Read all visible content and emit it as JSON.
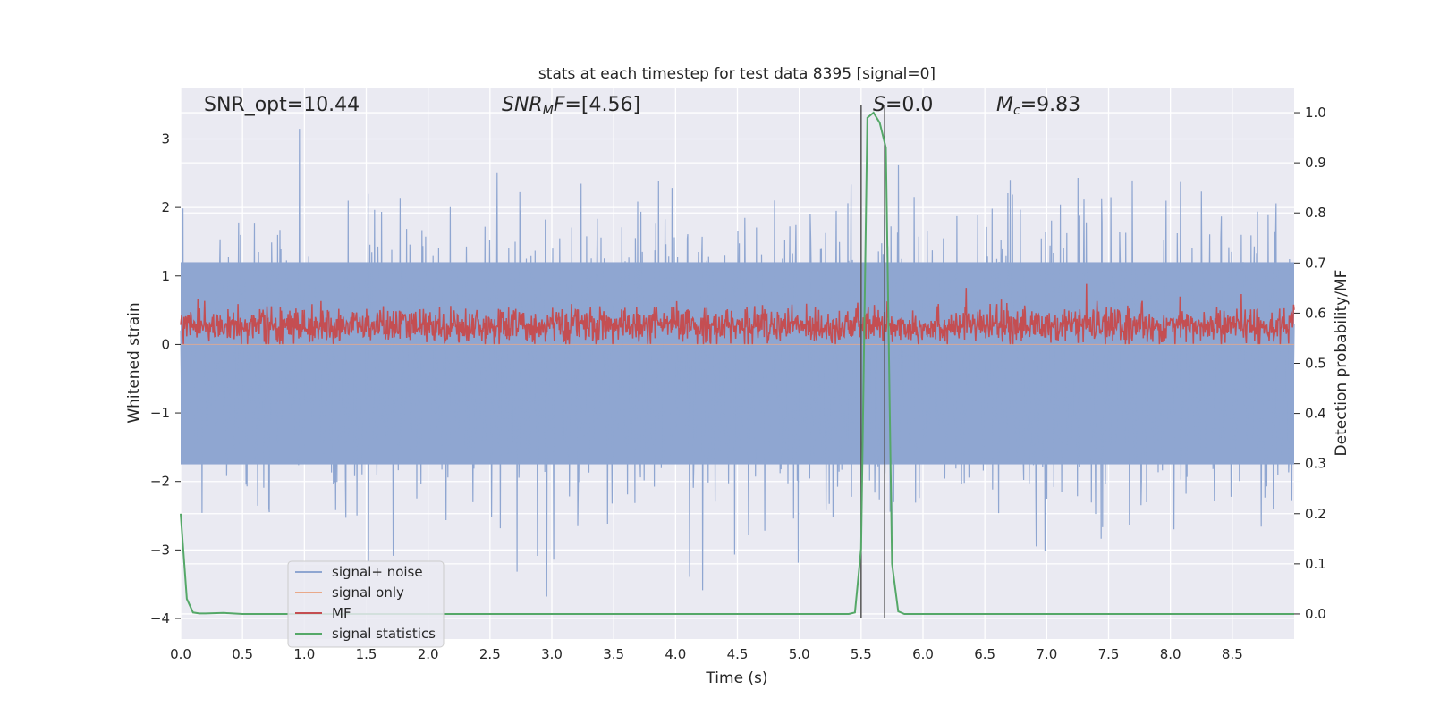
{
  "chart_data": {
    "type": "line",
    "title": "stats at each timestep for test data 8395 [signal=0]",
    "xlabel": "Time (s)",
    "ylabel": "Whitened strain",
    "ylabel_right": "Detection probability/MF",
    "xlim": [
      0.0,
      9.0
    ],
    "ylim": [
      -4.3,
      3.75
    ],
    "ylim_right": [
      -0.05,
      1.05
    ],
    "grid": true,
    "xticks": [
      "0.0",
      "0.5",
      "1.0",
      "1.5",
      "2.0",
      "2.5",
      "3.0",
      "3.5",
      "4.0",
      "4.5",
      "5.0",
      "5.5",
      "6.0",
      "6.5",
      "7.0",
      "7.5",
      "8.0",
      "8.5"
    ],
    "xtick_values": [
      0.0,
      0.5,
      1.0,
      1.5,
      2.0,
      2.5,
      3.0,
      3.5,
      4.0,
      4.5,
      5.0,
      5.5,
      6.0,
      6.5,
      7.0,
      7.5,
      8.0,
      8.5
    ],
    "yticks": [
      "3",
      "2",
      "1",
      "0",
      "−1",
      "−2",
      "−3",
      "−4"
    ],
    "ytick_values": [
      3,
      2,
      1,
      0,
      -1,
      -2,
      -3,
      -4
    ],
    "yticks_right": [
      "1.0",
      "0.9",
      "0.8",
      "0.7",
      "0.6",
      "0.5",
      "0.4",
      "0.3",
      "0.2",
      "0.1",
      "0.0"
    ],
    "ytick_right_values": [
      1.0,
      0.9,
      0.8,
      0.7,
      0.6,
      0.5,
      0.4,
      0.3,
      0.2,
      0.1,
      0.0
    ],
    "annotations": [
      {
        "id": "snr-opt",
        "text": "SNR_opt=10.44",
        "x": 0.19,
        "y": 3.5
      },
      {
        "id": "snr-mf",
        "text_html": "SNR<tspan font-style=\"italic\">_M</tspan>F=[4.56]",
        "x": 2.6,
        "y": 3.5
      },
      {
        "id": "s-stat",
        "text": "S=0.0",
        "x": 5.62,
        "y": 3.5
      },
      {
        "id": "mc",
        "text": "M_c=9.83",
        "x": 6.63,
        "y": 3.5
      }
    ],
    "annotation_texts": {
      "snr_opt": "SNR_opt=10.44",
      "snr_mf_prefix": "SNR",
      "snr_mf_sub": "M",
      "snr_mf_suffix": "F=[4.56]",
      "s_prefix": "S",
      "s_suffix": "=0.0",
      "mc_prefix": "M",
      "mc_sub": "c",
      "mc_suffix": "=9.83"
    },
    "vlines": [
      5.5,
      5.69
    ],
    "series": [
      {
        "name": "signal+ noise",
        "color": "#8fa6d1",
        "axis": "left",
        "description": "dense whitened strain noise roughly between -2.6 and 3.4"
      },
      {
        "name": "signal only",
        "color": "#e9a98a",
        "axis": "left",
        "values_note": "flat at 0"
      },
      {
        "name": "MF",
        "color": "#c44e52",
        "axis": "left",
        "description": "matched filter output roughly between 0 and 0.9"
      },
      {
        "name": "signal statistics",
        "color": "#55a868",
        "axis": "right",
        "x": [
          0.0,
          0.05,
          0.1,
          0.15,
          0.2,
          0.35,
          0.5,
          1.0,
          2.0,
          3.0,
          4.0,
          5.0,
          5.4,
          5.45,
          5.5,
          5.55,
          5.6,
          5.65,
          5.7,
          5.75,
          5.8,
          5.85,
          6.0,
          7.0,
          8.0,
          9.0
        ],
        "y": [
          0.2,
          0.03,
          0.003,
          0.001,
          0.001,
          0.002,
          0.0,
          0.0,
          0.0,
          0.0,
          0.0,
          0.0,
          0.0,
          0.003,
          0.13,
          0.99,
          1.0,
          0.98,
          0.93,
          0.1,
          0.005,
          0.0,
          0.0,
          0.0,
          0.0,
          0.0
        ]
      }
    ],
    "legend": {
      "placement": "lower-left",
      "entries": [
        "signal+ noise",
        "signal only",
        "MF",
        "signal statistics"
      ]
    }
  }
}
